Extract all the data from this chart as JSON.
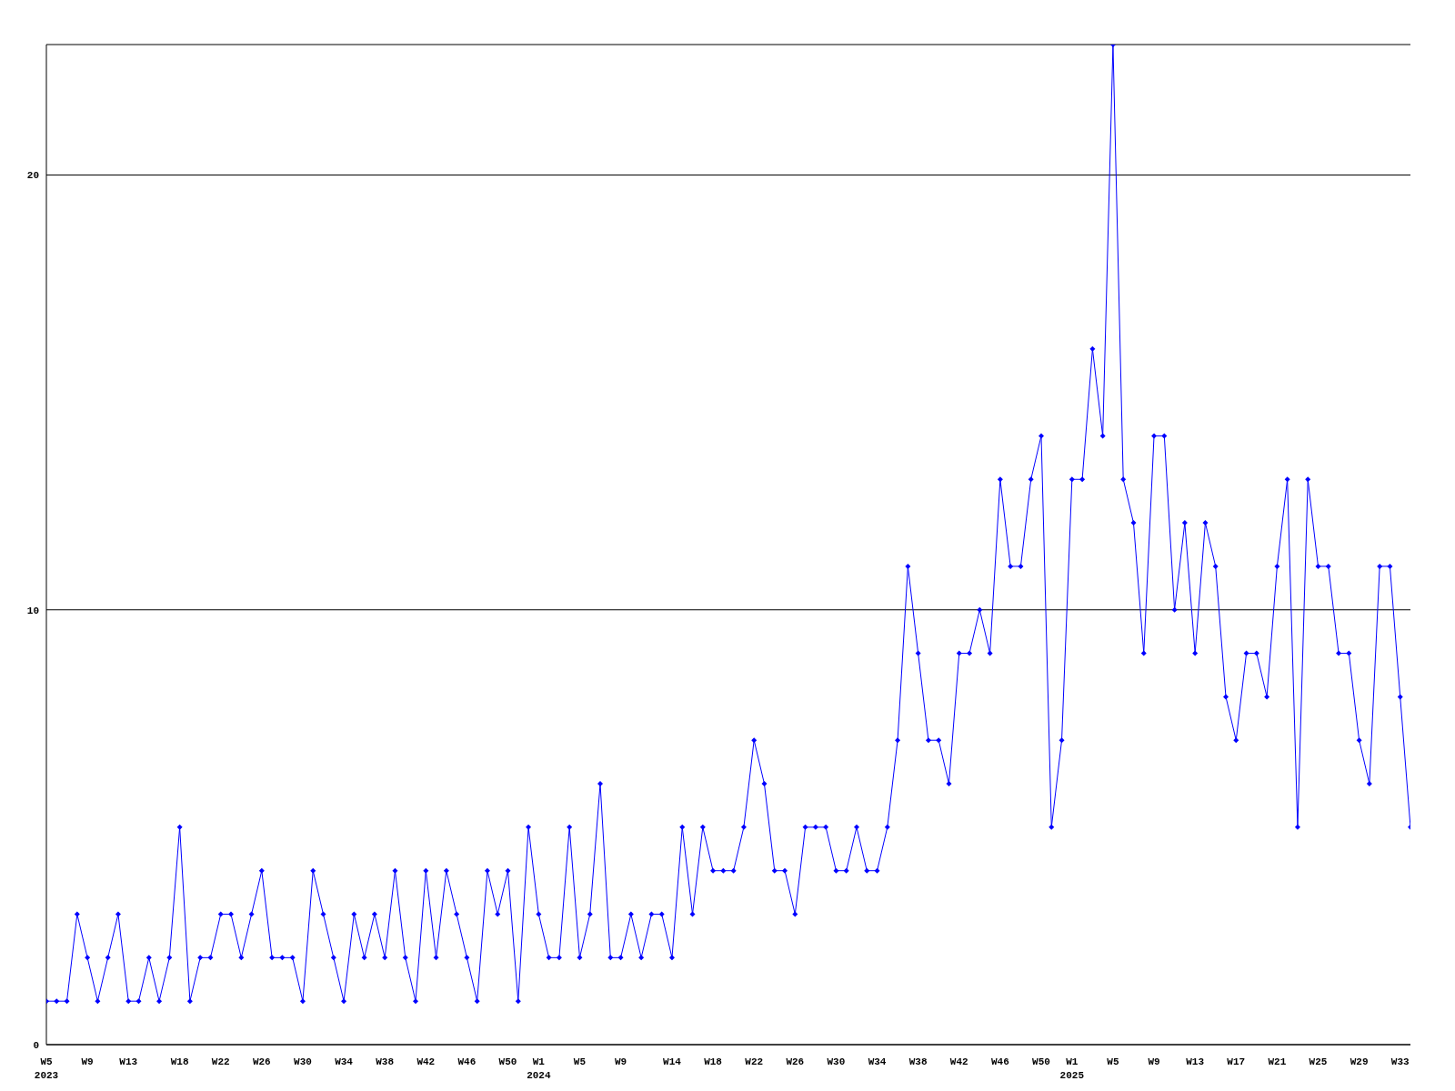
{
  "chart_data": {
    "type": "line",
    "categories": [
      "W5\n2023",
      null,
      null,
      null,
      "W9",
      null,
      null,
      null,
      "W13",
      null,
      null,
      null,
      null,
      "W18",
      null,
      null,
      null,
      "W22",
      null,
      null,
      null,
      "W26",
      null,
      null,
      null,
      "W30",
      null,
      null,
      null,
      "W34",
      null,
      null,
      null,
      "W38",
      null,
      null,
      null,
      "W42",
      null,
      null,
      null,
      "W46",
      null,
      null,
      null,
      "W50",
      null,
      null,
      "W1\n2024",
      null,
      null,
      null,
      "W5",
      null,
      null,
      null,
      "W9",
      null,
      null,
      null,
      null,
      "W14",
      null,
      null,
      null,
      "W18",
      null,
      null,
      null,
      "W22",
      null,
      null,
      null,
      "W26",
      null,
      null,
      null,
      "W30",
      null,
      null,
      null,
      "W34",
      null,
      null,
      null,
      "W38",
      null,
      null,
      null,
      "W42",
      null,
      null,
      null,
      "W46",
      null,
      null,
      null,
      "W50",
      null,
      null,
      "W1\n2025",
      null,
      null,
      null,
      "W5",
      null,
      null,
      null,
      "W9",
      null,
      null,
      null,
      "W13",
      null,
      null,
      null,
      "W17",
      null,
      null,
      null,
      "W21",
      null,
      null,
      null,
      "W25",
      null,
      null,
      null,
      "W29",
      null,
      null,
      null,
      "W33",
      null
    ],
    "series": [
      {
        "color": "#0000ff",
        "values": [
          1,
          1,
          1,
          3,
          2,
          1,
          2,
          3,
          1,
          1,
          2,
          1,
          2,
          5,
          1,
          2,
          2,
          3,
          3,
          2,
          3,
          4,
          2,
          2,
          2,
          1,
          4,
          3,
          2,
          1,
          3,
          2,
          3,
          2,
          4,
          2,
          1,
          4,
          2,
          4,
          3,
          2,
          1,
          4,
          3,
          4,
          1,
          5,
          3,
          2,
          2,
          5,
          2,
          3,
          6,
          2,
          2,
          3,
          2,
          3,
          3,
          2,
          5,
          3,
          5,
          4,
          4,
          4,
          5,
          7,
          6,
          4,
          4,
          3,
          5,
          5,
          5,
          4,
          4,
          5,
          4,
          4,
          5,
          7,
          11,
          9,
          7,
          7,
          6,
          9,
          9,
          10,
          9,
          13,
          11,
          11,
          13,
          14,
          5,
          7,
          13,
          13,
          16,
          14,
          23,
          13,
          12,
          9,
          14,
          14,
          10,
          12,
          9,
          12,
          11,
          8,
          7,
          9,
          9,
          8,
          11,
          13,
          5,
          13,
          11,
          11,
          9,
          9,
          7,
          6,
          11,
          11,
          8,
          5
        ]
      }
    ],
    "ylim": [
      0,
      23
    ],
    "yticks": [
      0,
      10,
      20
    ],
    "grid": "y",
    "marker": "diamond",
    "line_style": "solid"
  }
}
